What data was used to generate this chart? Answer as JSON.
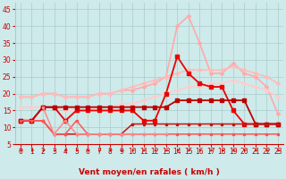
{
  "xlabel": "Vent moyen/en rafales ( km/h )",
  "xlim": [
    -0.5,
    23.5
  ],
  "ylim": [
    5,
    47
  ],
  "yticks": [
    5,
    10,
    15,
    20,
    25,
    30,
    35,
    40,
    45
  ],
  "xticks": [
    0,
    1,
    2,
    3,
    4,
    5,
    6,
    7,
    8,
    9,
    10,
    11,
    12,
    13,
    14,
    15,
    16,
    17,
    18,
    19,
    20,
    21,
    22,
    23
  ],
  "bg_color": "#ceeaea",
  "grid_color": "#aacccc",
  "series": [
    {
      "x": [
        0,
        1,
        2,
        3,
        4,
        5,
        6,
        7,
        8,
        9,
        10,
        11,
        12,
        13,
        14,
        15,
        16,
        17,
        18,
        19,
        20,
        21,
        22,
        23
      ],
      "y": [
        19,
        19,
        20,
        20,
        19,
        19,
        19,
        20,
        20,
        21,
        21,
        22,
        23,
        25,
        40,
        43,
        35,
        26,
        26,
        29,
        26,
        25,
        22,
        14
      ],
      "color": "#ffaaaa",
      "lw": 1.2,
      "marker": "D",
      "ms": 2.0,
      "zorder": 2
    },
    {
      "x": [
        0,
        1,
        2,
        3,
        4,
        5,
        6,
        7,
        8,
        9,
        10,
        11,
        12,
        13,
        14,
        15,
        16,
        17,
        18,
        19,
        20,
        21,
        22,
        23
      ],
      "y": [
        19,
        19,
        20,
        20,
        19,
        19,
        19,
        20,
        20,
        21,
        22,
        23,
        24,
        25,
        26,
        27,
        27,
        27,
        27,
        28,
        27,
        26,
        25,
        23
      ],
      "color": "#ffbbbb",
      "lw": 1.2,
      "marker": "D",
      "ms": 2.0,
      "zorder": 2
    },
    {
      "x": [
        0,
        1,
        2,
        3,
        4,
        5,
        6,
        7,
        8,
        9,
        10,
        11,
        12,
        13,
        14,
        15,
        16,
        17,
        18,
        19,
        20,
        21,
        22,
        23
      ],
      "y": [
        16,
        16,
        16,
        16,
        15,
        15,
        15,
        16,
        16,
        17,
        17,
        18,
        19,
        20,
        21,
        22,
        22,
        23,
        23,
        24,
        23,
        22,
        21,
        19
      ],
      "color": "#ffcccc",
      "lw": 1.2,
      "marker": "D",
      "ms": 2.0,
      "zorder": 2
    },
    {
      "x": [
        0,
        1,
        2,
        3,
        4,
        5,
        6,
        7,
        8,
        9,
        10,
        11,
        12,
        13,
        14,
        15,
        16,
        17,
        18,
        19,
        20,
        21,
        22,
        23
      ],
      "y": [
        12,
        12,
        16,
        16,
        12,
        15,
        15,
        15,
        15,
        15,
        15,
        12,
        12,
        20,
        31,
        26,
        23,
        22,
        22,
        15,
        11,
        11,
        11,
        11
      ],
      "color": "#ee0000",
      "lw": 1.3,
      "marker": "s",
      "ms": 2.5,
      "zorder": 3
    },
    {
      "x": [
        0,
        1,
        2,
        3,
        4,
        5,
        6,
        7,
        8,
        9,
        10,
        11,
        12,
        13,
        14,
        15,
        16,
        17,
        18,
        19,
        20,
        21,
        22,
        23
      ],
      "y": [
        12,
        12,
        16,
        16,
        16,
        16,
        16,
        16,
        16,
        16,
        16,
        16,
        16,
        16,
        18,
        18,
        18,
        18,
        18,
        18,
        18,
        11,
        11,
        11
      ],
      "color": "#bb0000",
      "lw": 1.3,
      "marker": "s",
      "ms": 2.5,
      "zorder": 3
    },
    {
      "x": [
        0,
        1,
        2,
        3,
        4,
        5,
        6,
        7,
        8,
        9,
        10,
        11,
        12,
        13,
        14,
        15,
        16,
        17,
        18,
        19,
        20,
        21,
        22,
        23
      ],
      "y": [
        12,
        12,
        12,
        8,
        8,
        8,
        8,
        8,
        8,
        8,
        11,
        11,
        11,
        11,
        11,
        11,
        11,
        11,
        11,
        11,
        11,
        11,
        11,
        11
      ],
      "color": "#cc1111",
      "lw": 1.1,
      "marker": "s",
      "ms": 2.0,
      "zorder": 3
    },
    {
      "x": [
        0,
        1,
        2,
        3,
        4,
        5,
        6,
        7,
        8,
        9,
        10,
        11,
        12,
        13,
        14,
        15,
        16,
        17,
        18,
        19,
        20,
        21,
        22,
        23
      ],
      "y": [
        12,
        12,
        12,
        8,
        8,
        12,
        8,
        8,
        8,
        8,
        8,
        8,
        8,
        8,
        8,
        8,
        8,
        8,
        8,
        8,
        8,
        8,
        8,
        8
      ],
      "color": "#ff5555",
      "lw": 1.1,
      "marker": "s",
      "ms": 2.0,
      "zorder": 3
    },
    {
      "x": [
        2,
        3,
        4,
        5,
        6,
        7,
        8,
        9,
        10,
        11,
        12,
        13
      ],
      "y": [
        16,
        8,
        12,
        8,
        8,
        8,
        8,
        8,
        8,
        8,
        8,
        8
      ],
      "color": "#ff8888",
      "lw": 1.1,
      "marker": "s",
      "ms": 2.0,
      "zorder": 3
    }
  ],
  "arrow_color": "#cc0000",
  "xlabel_color": "#cc0000",
  "tick_color": "#cc0000",
  "xlabel_fontsize": 6.5,
  "tick_fontsize": 5.5
}
